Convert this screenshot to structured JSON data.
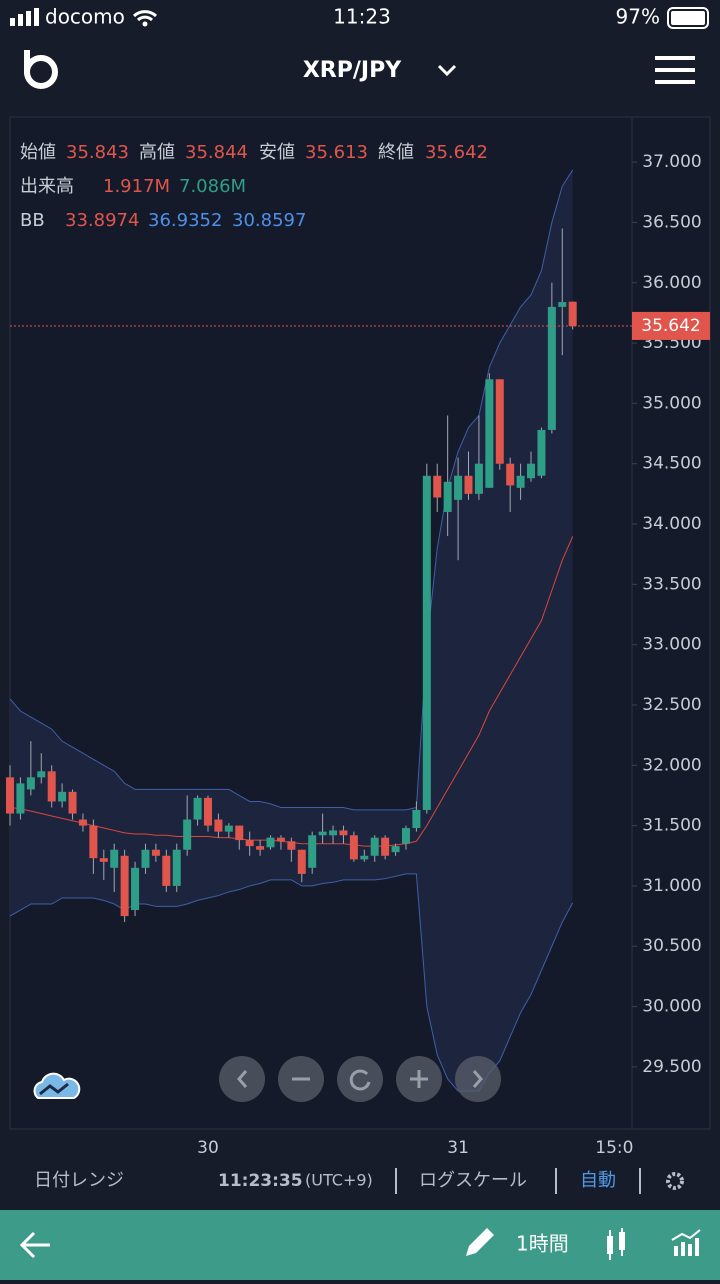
{
  "status": {
    "carrier": "docomo",
    "time": "11:23",
    "battery": "97%"
  },
  "header": {
    "pair": "XRP/JPY"
  },
  "info": {
    "open_label": "始値",
    "high_label": "高値",
    "low_label": "安値",
    "close_label": "終値",
    "volume_label": "出来高",
    "volume_1": "1.917M",
    "volume_2": "7.086M",
    "bb_label": "BB"
  },
  "chart_data": {
    "type": "candlestick",
    "categories": [
      null,
      null,
      null,
      null,
      null,
      null,
      null,
      null,
      null,
      null,
      null,
      null,
      null,
      null,
      null,
      null,
      null,
      null,
      null,
      null,
      "30",
      null,
      null,
      null,
      null,
      null,
      null,
      null,
      null,
      null,
      null,
      null,
      null,
      null,
      null,
      null,
      null,
      null,
      null,
      null,
      null,
      null,
      null,
      null,
      "31",
      null,
      null,
      null,
      null,
      null,
      null,
      null,
      null,
      null,
      null,
      null,
      null,
      null,
      null,
      "15:0"
    ],
    "open": [
      null,
      31.9,
      31.6,
      31.8,
      31.9,
      31.95,
      31.7,
      31.78,
      31.55,
      31.5,
      31.23,
      31.15,
      31.25,
      30.8,
      31.15,
      31.3,
      31.25,
      31.0,
      31.3,
      31.55,
      31.73,
      31.55,
      31.45,
      31.5,
      31.38,
      31.33,
      31.32,
      31.4,
      31.37,
      31.3,
      31.15,
      31.42,
      31.42,
      31.46,
      31.42,
      31.22,
      31.25,
      31.4,
      31.28,
      31.35,
      31.48,
      31.63,
      34.4,
      34.1,
      34.2,
      34.4,
      34.25,
      34.3,
      35.2,
      34.5,
      34.3,
      34.38,
      34.4,
      34.78,
      35.8,
      35.843,
      null,
      null,
      null,
      null
    ],
    "high": [
      null,
      32.0,
      31.9,
      32.2,
      32.1,
      32.0,
      31.85,
      31.8,
      31.6,
      31.55,
      31.3,
      31.35,
      31.3,
      31.2,
      31.35,
      31.35,
      31.3,
      31.35,
      31.75,
      31.75,
      31.75,
      31.6,
      31.52,
      31.5,
      31.45,
      31.38,
      31.42,
      31.42,
      31.4,
      31.3,
      31.45,
      31.6,
      31.5,
      31.5,
      31.45,
      31.3,
      31.42,
      31.42,
      31.35,
      31.5,
      31.7,
      34.5,
      34.5,
      34.9,
      34.55,
      34.6,
      34.9,
      35.25,
      35.2,
      34.55,
      34.5,
      34.6,
      34.8,
      36.0,
      36.45,
      35.844,
      null,
      null,
      null,
      null
    ],
    "low": [
      null,
      31.5,
      31.55,
      31.75,
      31.85,
      31.65,
      31.65,
      31.55,
      31.45,
      31.1,
      31.05,
      30.95,
      30.7,
      30.75,
      31.1,
      31.2,
      30.95,
      30.95,
      31.25,
      31.5,
      31.45,
      31.4,
      31.4,
      31.3,
      31.25,
      31.25,
      31.3,
      31.3,
      31.2,
      31.03,
      31.1,
      31.35,
      31.35,
      31.35,
      31.2,
      31.2,
      31.2,
      31.22,
      31.25,
      31.3,
      31.45,
      31.6,
      34.1,
      33.9,
      33.7,
      34.2,
      34.2,
      34.3,
      34.45,
      34.1,
      34.2,
      34.35,
      34.38,
      34.75,
      35.4,
      35.613,
      null,
      null,
      null,
      null
    ],
    "close": [
      null,
      31.6,
      31.85,
      31.9,
      31.95,
      31.7,
      31.78,
      31.6,
      31.5,
      31.23,
      31.2,
      31.3,
      30.75,
      31.15,
      31.3,
      31.25,
      31.0,
      31.3,
      31.55,
      31.73,
      31.5,
      31.45,
      31.5,
      31.38,
      31.33,
      31.3,
      31.4,
      31.37,
      31.3,
      31.1,
      31.42,
      31.45,
      31.46,
      31.42,
      31.22,
      31.25,
      31.4,
      31.25,
      31.33,
      31.48,
      31.63,
      34.4,
      34.22,
      34.35,
      34.4,
      34.25,
      34.5,
      35.2,
      34.5,
      34.32,
      34.4,
      34.5,
      34.78,
      35.8,
      35.84,
      35.642,
      null,
      null,
      null,
      null
    ],
    "up_color": "#2f9e86",
    "down_color": "#e0564c",
    "bb": {
      "middle": [
        null,
        31.65,
        31.64,
        31.62,
        31.6,
        31.58,
        31.56,
        31.54,
        31.52,
        31.5,
        31.48,
        31.46,
        31.44,
        31.43,
        31.43,
        31.42,
        31.42,
        31.41,
        31.41,
        31.41,
        31.41,
        31.4,
        31.4,
        31.39,
        31.38,
        31.38,
        31.38,
        31.37,
        31.36,
        31.35,
        31.35,
        31.35,
        31.35,
        31.35,
        31.34,
        31.33,
        31.33,
        31.33,
        31.34,
        31.35,
        31.37,
        31.5,
        31.65,
        31.8,
        31.95,
        32.1,
        32.25,
        32.45,
        32.6,
        32.75,
        32.9,
        33.05,
        33.2,
        33.45,
        33.7,
        33.8974,
        null,
        null,
        null,
        null
      ],
      "upper": [
        null,
        32.55,
        32.45,
        32.4,
        32.35,
        32.3,
        32.2,
        32.15,
        32.1,
        32.05,
        32.0,
        31.95,
        31.85,
        31.8,
        31.8,
        31.8,
        31.8,
        31.8,
        31.8,
        31.8,
        31.8,
        31.8,
        31.8,
        31.75,
        31.7,
        31.7,
        31.68,
        31.65,
        31.65,
        31.65,
        31.65,
        31.65,
        31.65,
        31.65,
        31.63,
        31.63,
        31.63,
        31.63,
        31.63,
        31.63,
        31.65,
        33.0,
        33.8,
        34.3,
        34.6,
        34.8,
        34.9,
        35.3,
        35.5,
        35.65,
        35.8,
        35.9,
        36.1,
        36.5,
        36.8,
        36.9352,
        null,
        null,
        null,
        null
      ],
      "lower": [
        null,
        30.75,
        30.8,
        30.85,
        30.85,
        30.85,
        30.9,
        30.9,
        30.9,
        30.9,
        30.88,
        30.85,
        30.8,
        30.85,
        30.85,
        30.83,
        30.83,
        30.83,
        30.85,
        30.88,
        30.9,
        30.92,
        30.95,
        30.97,
        31.0,
        31.02,
        31.05,
        31.05,
        31.05,
        31.0,
        31.0,
        31.02,
        31.03,
        31.05,
        31.05,
        31.05,
        31.05,
        31.06,
        31.08,
        31.1,
        31.1,
        30.0,
        29.6,
        29.4,
        29.3,
        29.3,
        29.3,
        29.45,
        29.55,
        29.75,
        29.95,
        30.1,
        30.3,
        30.5,
        30.7,
        30.8597,
        null,
        null,
        null,
        null
      ],
      "middle_color": "#d9473f",
      "band_color": "#3f5fa8",
      "upper_label_color": "#4f8fe8"
    },
    "ylim": [
      28.985,
      37.374
    ],
    "yticks": [
      {
        "value": 29.5,
        "label": "29.500"
      },
      {
        "value": 30,
        "label": "30.000"
      },
      {
        "value": 30.5,
        "label": "30.500"
      },
      {
        "value": 31,
        "label": "31.000"
      },
      {
        "value": 31.5,
        "label": "31.500"
      },
      {
        "value": 32,
        "label": "32.000"
      },
      {
        "value": 32.5,
        "label": "32.500"
      },
      {
        "value": 33,
        "label": "33.000"
      },
      {
        "value": 33.5,
        "label": "33.500"
      },
      {
        "value": 34,
        "label": "34.000"
      },
      {
        "value": 34.5,
        "label": "34.500"
      },
      {
        "value": 35,
        "label": "35.000"
      },
      {
        "value": 35.5,
        "label": "35.500"
      },
      {
        "value": 36,
        "label": "36.000"
      },
      {
        "value": 36.5,
        "label": "36.500"
      },
      {
        "value": 37,
        "label": "37.000"
      }
    ]
  },
  "toolbar": {
    "range": "日付レンジ",
    "clock": "11:23:35",
    "tz": "(UTC+9)",
    "log": "ログスケール",
    "auto": "自動"
  },
  "bottom": {
    "interval": "1時間"
  }
}
